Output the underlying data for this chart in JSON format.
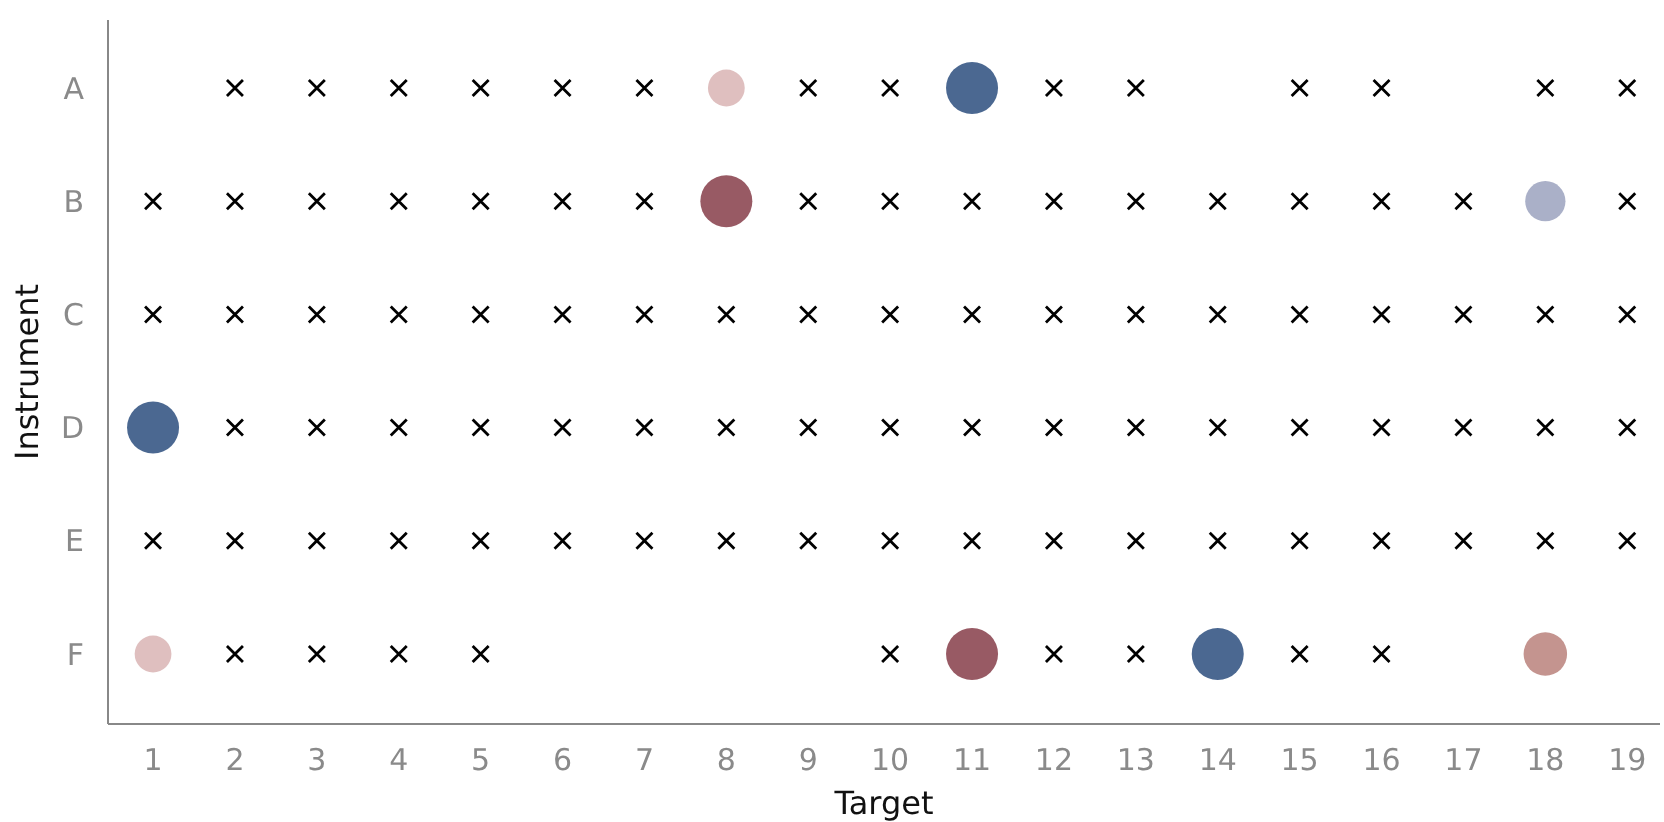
{
  "chart_data": {
    "type": "scatter",
    "orientation": "horizontal",
    "xlabel": "Target",
    "ylabel": "Instrument",
    "xlim": [
      0.45,
      19.4
    ],
    "xticks": [
      1,
      2,
      3,
      4,
      5,
      6,
      7,
      8,
      9,
      10,
      11,
      12,
      13,
      14,
      15,
      16,
      17,
      18,
      19
    ],
    "categories": [
      "A",
      "B",
      "C",
      "D",
      "E",
      "F"
    ],
    "grid": false,
    "marker": "cross",
    "series": [
      {
        "color": "#000000",
        "values": [
          null,
          1,
          1,
          null,
          1,
          null
        ]
      },
      {
        "color": "#000000",
        "values": [
          2,
          2,
          2,
          2,
          2,
          2
        ]
      },
      {
        "color": "#000000",
        "values": [
          3,
          3,
          3,
          3,
          3,
          3
        ]
      },
      {
        "color": "#000000",
        "values": [
          4,
          4,
          4,
          4,
          4,
          4
        ]
      },
      {
        "color": "#000000",
        "values": [
          5,
          5,
          5,
          5,
          5,
          5
        ]
      },
      {
        "color": "#000000",
        "values": [
          6,
          6,
          6,
          6,
          6,
          null
        ]
      },
      {
        "color": "#000000",
        "values": [
          7,
          7,
          7,
          7,
          7,
          null
        ]
      },
      {
        "color": "#000000",
        "values": [
          null,
          null,
          8,
          8,
          8,
          null
        ]
      },
      {
        "color": "#000000",
        "values": [
          9,
          9,
          9,
          9,
          9,
          null
        ]
      },
      {
        "color": "#000000",
        "values": [
          10,
          10,
          10,
          10,
          10,
          10
        ]
      },
      {
        "color": "#000000",
        "values": [
          null,
          11,
          11,
          11,
          11,
          null
        ]
      },
      {
        "color": "#000000",
        "values": [
          12,
          12,
          12,
          12,
          12,
          12
        ]
      },
      {
        "color": "#000000",
        "values": [
          13,
          13,
          13,
          13,
          13,
          13
        ]
      },
      {
        "color": "#000000",
        "values": [
          null,
          14,
          14,
          14,
          14,
          null
        ]
      },
      {
        "color": "#000000",
        "values": [
          15,
          15,
          15,
          15,
          15,
          15
        ]
      },
      {
        "color": "#000000",
        "values": [
          16,
          16,
          16,
          16,
          16,
          16
        ]
      },
      {
        "color": "#000000",
        "values": [
          null,
          17,
          17,
          17,
          17,
          null
        ]
      },
      {
        "color": "#000000",
        "values": [
          18,
          null,
          18,
          18,
          18,
          null
        ]
      },
      {
        "color": "#000000",
        "values": [
          19,
          19,
          19,
          19,
          19,
          null
        ]
      },
      {
        "type": "bubble",
        "marker": "circle",
        "values": [
          8,
          8,
          null,
          1,
          null,
          1
        ],
        "sizes": [
          0.5,
          1,
          null,
          1,
          null,
          0.5
        ],
        "colors": [
          "#dfbfbf",
          "#985a64",
          null,
          "#4b6891",
          null,
          "#dfbfbf"
        ]
      },
      {
        "type": "bubble",
        "marker": "circle",
        "values": [
          11,
          18,
          null,
          null,
          null,
          11
        ],
        "sizes": [
          1,
          0.6,
          null,
          null,
          null,
          1
        ],
        "colors": [
          "#4b6891",
          "#aab0c8",
          null,
          null,
          null,
          "#985a64"
        ]
      },
      {
        "type": "bubble",
        "marker": "circle",
        "values": [
          null,
          null,
          null,
          null,
          null,
          14
        ],
        "sizes": [
          null,
          null,
          null,
          null,
          null,
          1
        ],
        "colors": [
          null,
          null,
          null,
          null,
          null,
          "#4b6891"
        ]
      },
      {
        "type": "bubble",
        "marker": "circle",
        "values": [
          null,
          null,
          null,
          null,
          null,
          18
        ],
        "sizes": [
          null,
          null,
          null,
          null,
          null,
          0.7
        ],
        "colors": [
          null,
          null,
          null,
          null,
          null,
          "#c4948f"
        ]
      }
    ]
  }
}
